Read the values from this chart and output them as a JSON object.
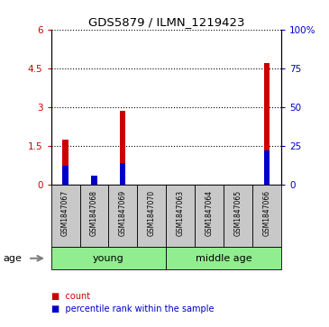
{
  "title": "GDS5879 / ILMN_1219423",
  "samples": [
    "GSM1847067",
    "GSM1847068",
    "GSM1847069",
    "GSM1847070",
    "GSM1847063",
    "GSM1847064",
    "GSM1847065",
    "GSM1847066"
  ],
  "red_values": [
    1.75,
    0.25,
    2.85,
    0.0,
    0.0,
    0.0,
    0.0,
    4.7
  ],
  "blue_pct": [
    12,
    6,
    14,
    0,
    0,
    0,
    0,
    22
  ],
  "ylim_left": [
    0,
    6
  ],
  "ylim_right": [
    0,
    100
  ],
  "yticks_left": [
    0,
    1.5,
    3,
    4.5,
    6
  ],
  "yticks_right": [
    0,
    25,
    50,
    75,
    100
  ],
  "ytick_labels_left": [
    "0",
    "1.5",
    "3",
    "4.5",
    "6"
  ],
  "ytick_labels_right": [
    "0",
    "25",
    "50",
    "75",
    "100%"
  ],
  "groups": [
    {
      "label": "young",
      "start": 0,
      "end": 4,
      "color": "#90ee90"
    },
    {
      "label": "middle age",
      "start": 4,
      "end": 8,
      "color": "#90ee90"
    }
  ],
  "age_label": "age",
  "bar_width": 0.35,
  "red_color": "#cc0000",
  "blue_color": "#0000cc",
  "bg_color": "#ffffff",
  "sample_bg_color": "#c8c8c8",
  "legend_items": [
    {
      "label": "count",
      "color": "#cc0000"
    },
    {
      "label": "percentile rank within the sample",
      "color": "#0000cc"
    }
  ]
}
